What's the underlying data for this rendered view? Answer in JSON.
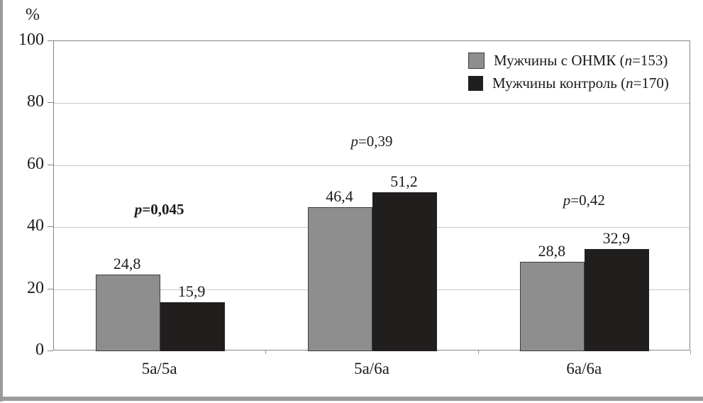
{
  "figure": {
    "frame": {
      "color": "#9b9b9b"
    }
  },
  "chart_data": {
    "type": "bar",
    "title": "",
    "ylabel": "%",
    "xlabel": "",
    "ylim": [
      0,
      100
    ],
    "yticks": [
      0,
      20,
      40,
      60,
      80,
      100
    ],
    "grid": true,
    "grid_values": [
      20,
      40,
      60,
      80
    ],
    "categories": [
      "5a/5a",
      "5a/6a",
      "6a/6a"
    ],
    "series": [
      {
        "name": "Мужчины с ОНМК (n=153)",
        "color": "#8e8e8e",
        "values": [
          24.8,
          46.4,
          28.8
        ],
        "value_labels": [
          "24,8",
          "46,4",
          "28,8"
        ]
      },
      {
        "name": "Мужчины контроль (n=170)",
        "color": "#211e1e",
        "values": [
          15.9,
          51.2,
          32.9
        ],
        "value_labels": [
          "15,9",
          "51,2",
          "32,9"
        ]
      }
    ],
    "p_values": [
      {
        "p_char": "p",
        "rest": "=0,045",
        "bold": true,
        "y_axis_units": 45.2
      },
      {
        "p_char": "p",
        "rest": "=0,39",
        "bold": false,
        "y_axis_units": 67.2
      },
      {
        "p_char": "p",
        "rest": "=0,42",
        "bold": false,
        "y_axis_units": 48.2
      }
    ],
    "legend_position": "top-right",
    "legend": [
      {
        "prefix": "Мужчины с ОНМК (",
        "italic": "n",
        "suffix": "=153)",
        "color": "#8e8e8e"
      },
      {
        "prefix": "Мужчины контроль (",
        "italic": "n",
        "suffix": "=170)",
        "color": "#211e1e"
      }
    ]
  }
}
